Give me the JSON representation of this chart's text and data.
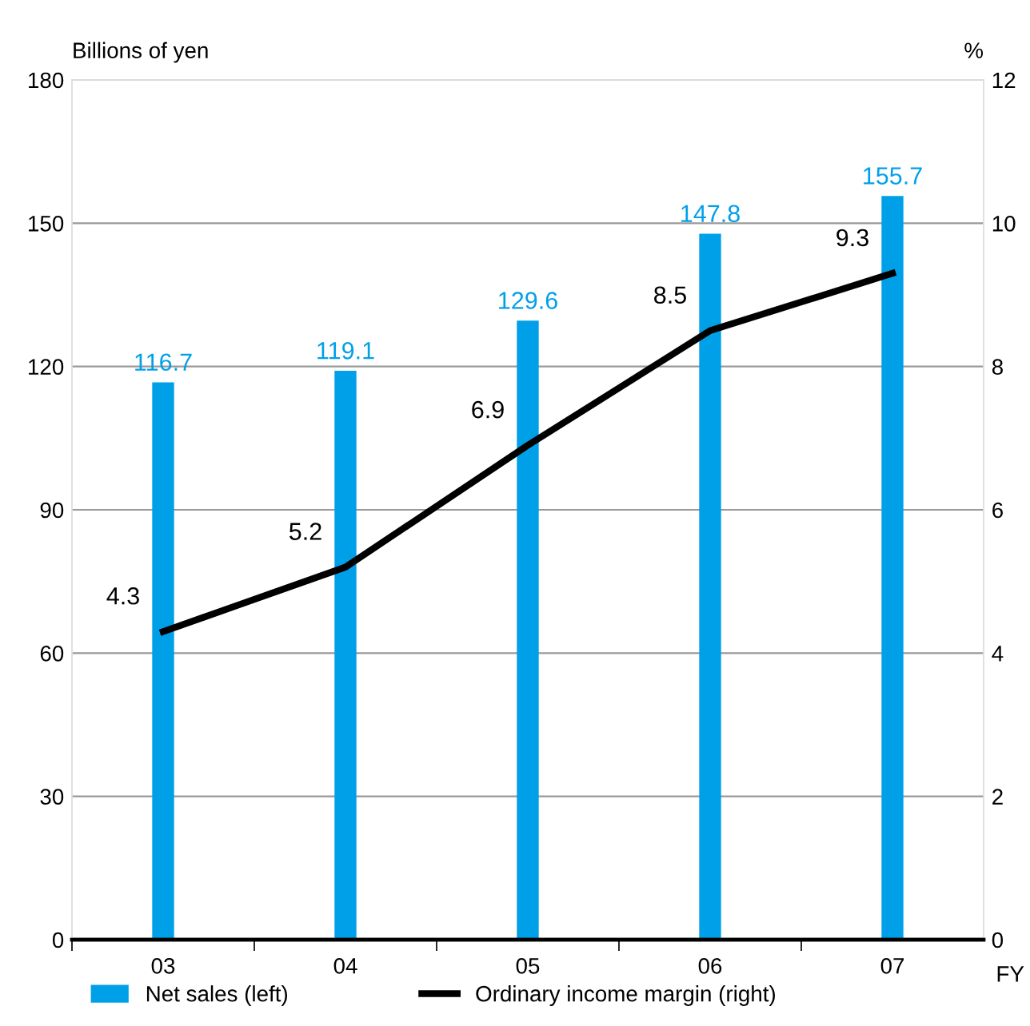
{
  "chart_data": {
    "type": "bar",
    "categories": [
      "03",
      "04",
      "05",
      "06",
      "07"
    ],
    "series": [
      {
        "name": "Net sales (left)",
        "color": "#00a0e9",
        "values": [
          116.7,
          119.1,
          129.6,
          147.8,
          155.7
        ]
      },
      {
        "name": "Ordinary income margin (right)",
        "type": "line",
        "axis": "y2",
        "color": "#000000",
        "values": [
          4.3,
          5.2,
          6.9,
          8.5,
          9.3
        ]
      }
    ],
    "ylabel": "Billions of yen",
    "y2label": "%",
    "xlabel": "FY",
    "ylim": [
      0,
      180
    ],
    "yticks": [
      0,
      30,
      60,
      90,
      120,
      150,
      180
    ],
    "y2lim": [
      0,
      12
    ],
    "y2ticks": [
      0,
      2,
      4,
      6,
      8,
      10,
      12
    ],
    "grid": "y",
    "legend": "bottom",
    "data_labels": true,
    "marker": "none",
    "line_style": "solid"
  }
}
